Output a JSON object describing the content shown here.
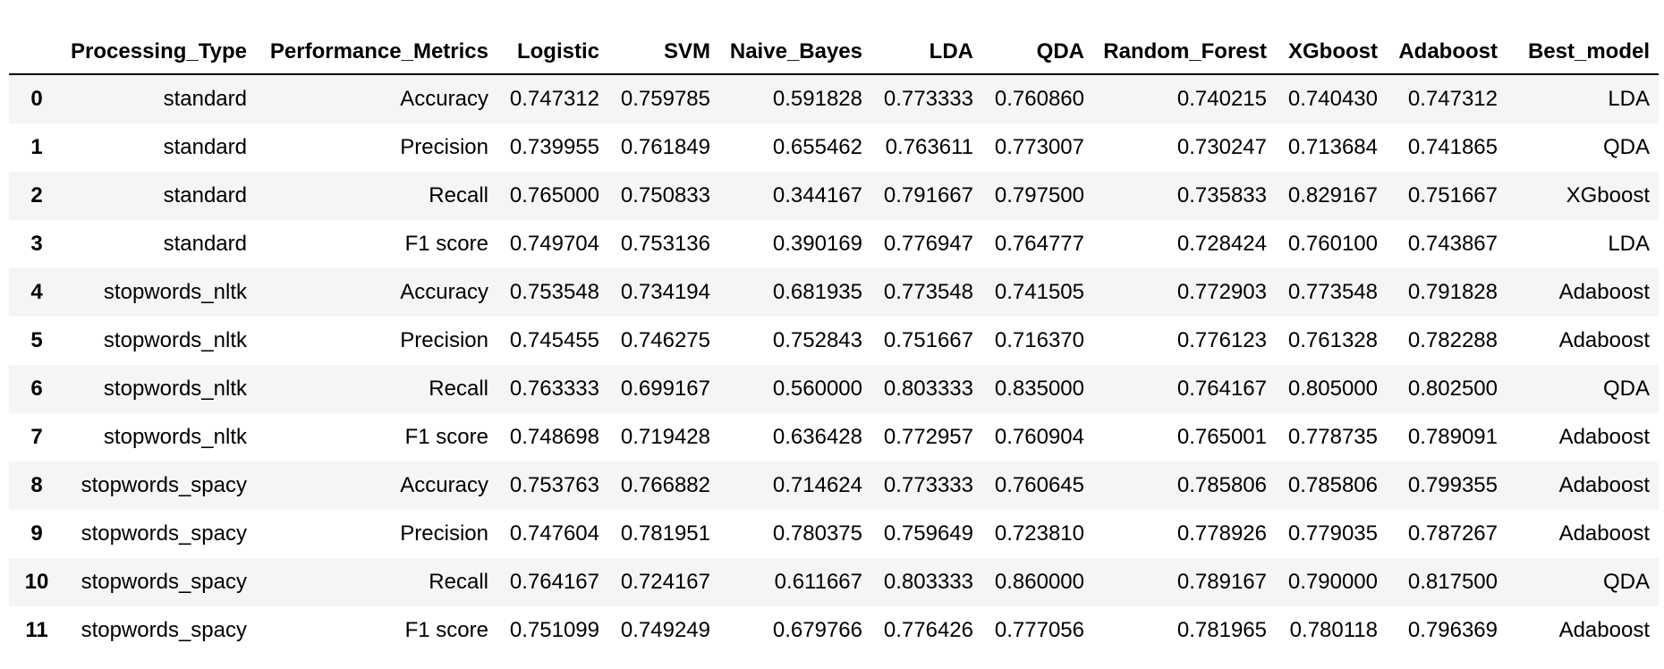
{
  "table": {
    "columns": [
      "",
      "Processing_Type",
      "Performance_Metrics",
      "Logistic",
      "SVM",
      "Naive_Bayes",
      "LDA",
      "QDA",
      "Random_Forest",
      "XGboost",
      "Adaboost",
      "Best_model"
    ],
    "rows": [
      [
        "0",
        "standard",
        "Accuracy",
        "0.747312",
        "0.759785",
        "0.591828",
        "0.773333",
        "0.760860",
        "0.740215",
        "0.740430",
        "0.747312",
        "LDA"
      ],
      [
        "1",
        "standard",
        "Precision",
        "0.739955",
        "0.761849",
        "0.655462",
        "0.763611",
        "0.773007",
        "0.730247",
        "0.713684",
        "0.741865",
        "QDA"
      ],
      [
        "2",
        "standard",
        "Recall",
        "0.765000",
        "0.750833",
        "0.344167",
        "0.791667",
        "0.797500",
        "0.735833",
        "0.829167",
        "0.751667",
        "XGboost"
      ],
      [
        "3",
        "standard",
        "F1 score",
        "0.749704",
        "0.753136",
        "0.390169",
        "0.776947",
        "0.764777",
        "0.728424",
        "0.760100",
        "0.743867",
        "LDA"
      ],
      [
        "4",
        "stopwords_nltk",
        "Accuracy",
        "0.753548",
        "0.734194",
        "0.681935",
        "0.773548",
        "0.741505",
        "0.772903",
        "0.773548",
        "0.791828",
        "Adaboost"
      ],
      [
        "5",
        "stopwords_nltk",
        "Precision",
        "0.745455",
        "0.746275",
        "0.752843",
        "0.751667",
        "0.716370",
        "0.776123",
        "0.761328",
        "0.782288",
        "Adaboost"
      ],
      [
        "6",
        "stopwords_nltk",
        "Recall",
        "0.763333",
        "0.699167",
        "0.560000",
        "0.803333",
        "0.835000",
        "0.764167",
        "0.805000",
        "0.802500",
        "QDA"
      ],
      [
        "7",
        "stopwords_nltk",
        "F1 score",
        "0.748698",
        "0.719428",
        "0.636428",
        "0.772957",
        "0.760904",
        "0.765001",
        "0.778735",
        "0.789091",
        "Adaboost"
      ],
      [
        "8",
        "stopwords_spacy",
        "Accuracy",
        "0.753763",
        "0.766882",
        "0.714624",
        "0.773333",
        "0.760645",
        "0.785806",
        "0.785806",
        "0.799355",
        "Adaboost"
      ],
      [
        "9",
        "stopwords_spacy",
        "Precision",
        "0.747604",
        "0.781951",
        "0.780375",
        "0.759649",
        "0.723810",
        "0.778926",
        "0.779035",
        "0.787267",
        "Adaboost"
      ],
      [
        "10",
        "stopwords_spacy",
        "Recall",
        "0.764167",
        "0.724167",
        "0.611667",
        "0.803333",
        "0.860000",
        "0.789167",
        "0.790000",
        "0.817500",
        "QDA"
      ],
      [
        "11",
        "stopwords_spacy",
        "F1 score",
        "0.751099",
        "0.749249",
        "0.679766",
        "0.776426",
        "0.777056",
        "0.781965",
        "0.780118",
        "0.796369",
        "Adaboost"
      ]
    ]
  }
}
